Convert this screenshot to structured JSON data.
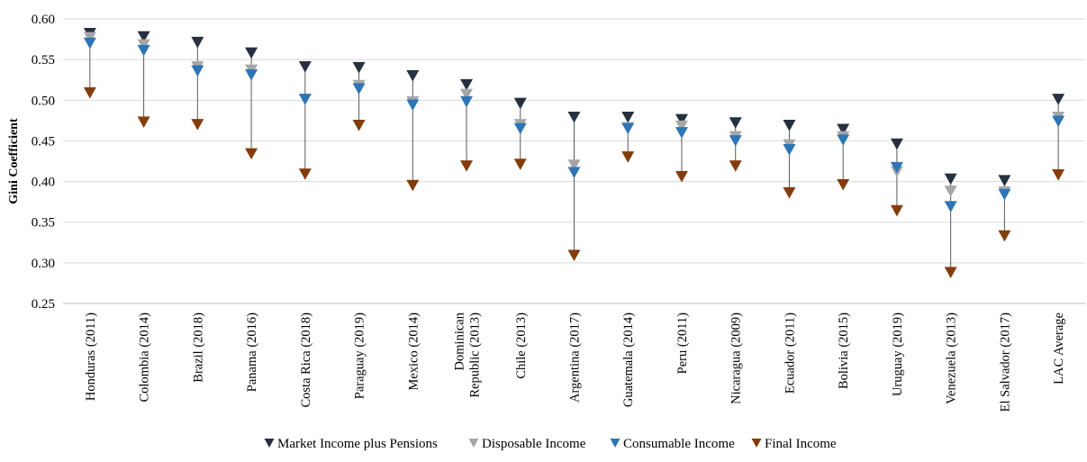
{
  "chart_data": {
    "type": "scatter",
    "title": "",
    "xlabel": "",
    "ylabel": "Gini Coefficient",
    "ylim": [
      0.25,
      0.6
    ],
    "yticks": [
      "0.25",
      "0.30",
      "0.35",
      "0.40",
      "0.45",
      "0.50",
      "0.55",
      "0.60"
    ],
    "grid": "horizontal",
    "legend_position": "bottom",
    "categories": [
      [
        "Honduras (2011)"
      ],
      [
        "Colombia (2014)"
      ],
      [
        "Brazil (2018)"
      ],
      [
        "Panama (2016)"
      ],
      [
        "Costa Rica (2018)"
      ],
      [
        "Paraguay (2019)"
      ],
      [
        "Mexico (2014)"
      ],
      [
        "Dominican",
        "Republic (2013)"
      ],
      [
        "Chile (2013)"
      ],
      [
        "Argentina (2017)"
      ],
      [
        "Guatemala (2014)"
      ],
      [
        "Peru (2011)"
      ],
      [
        "Nicaragua (2009)"
      ],
      [
        "Ecuador (2011)"
      ],
      [
        "Bolivia (2015)"
      ],
      [
        "Uruguay (2019)"
      ],
      [
        "Venezuela (2013)"
      ],
      [
        "El Salvador (2017)"
      ],
      [
        "LAC Average"
      ]
    ],
    "series": [
      {
        "name": "Market Income plus Pensions",
        "color": "#263040",
        "values": [
          0.582,
          0.578,
          0.571,
          0.558,
          0.541,
          0.54,
          0.53,
          0.519,
          0.496,
          0.479,
          0.479,
          0.476,
          0.472,
          0.469,
          0.464,
          0.446,
          0.403,
          0.401,
          0.501
        ]
      },
      {
        "name": "Disposable Income",
        "color": "#a6a6a6",
        "values": [
          0.577,
          0.568,
          0.541,
          0.537,
          0.501,
          0.518,
          0.498,
          0.507,
          0.47,
          0.42,
          0.466,
          0.468,
          0.455,
          0.445,
          0.455,
          0.412,
          0.388,
          0.387,
          0.479
        ]
      },
      {
        "name": "Consumable Income",
        "color": "#2e75b6",
        "values": [
          0.57,
          0.561,
          0.536,
          0.531,
          0.501,
          0.514,
          0.494,
          0.498,
          0.465,
          0.411,
          0.465,
          0.46,
          0.45,
          0.439,
          0.451,
          0.417,
          0.369,
          0.384,
          0.474
        ]
      },
      {
        "name": "Final Income",
        "color": "#843c0c",
        "values": [
          0.509,
          0.473,
          0.47,
          0.434,
          0.409,
          0.469,
          0.395,
          0.419,
          0.421,
          0.309,
          0.43,
          0.406,
          0.419,
          0.386,
          0.396,
          0.364,
          0.288,
          0.333,
          0.408
        ]
      }
    ]
  }
}
